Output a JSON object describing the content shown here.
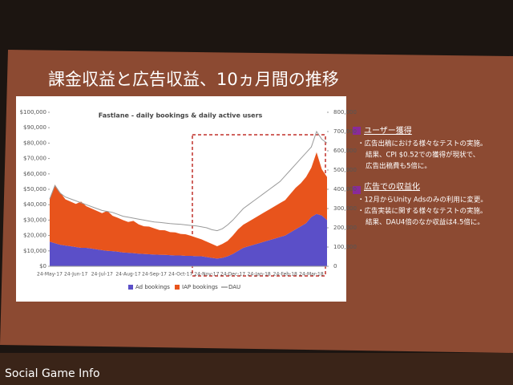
{
  "slide": {
    "title": "課金収益と広告収益、10ヵ月間の推移",
    "sections": [
      {
        "heading": "ユーザー獲得",
        "lines": [
          "・広告出稿における様々なテストの実施。",
          "結果、CPI $0.52での獲得が現状で、",
          "広告出稿費も5倍に。"
        ]
      },
      {
        "heading": "広告での収益化",
        "lines": [
          "・12月からUnity Adsのみの利用に変更。",
          "・広告実装に関する様々なテストの実施。",
          "結果、DAU4倍のなか収益は4.5倍に。"
        ]
      }
    ]
  },
  "watermark": "Social Game Info",
  "chart_data": {
    "type": "stacked-area-line",
    "title": "Fastlane - daily bookings & daily active users",
    "categories": [
      "24-May-17",
      null,
      null,
      null,
      null,
      "24-Jun-17",
      null,
      null,
      null,
      null,
      "24-Jul-17",
      null,
      null,
      null,
      null,
      "24-Aug-17",
      null,
      null,
      null,
      null,
      "24-Sep-17",
      null,
      null,
      null,
      null,
      "24-Oct-17",
      null,
      null,
      null,
      null,
      "24-Nov-17",
      null,
      null,
      null,
      null,
      "24-Dec-17",
      null,
      null,
      null,
      null,
      "24-Jan-18",
      null,
      null,
      null,
      null,
      "24-Feb-18",
      null,
      null,
      null,
      null,
      "24-Mar-18",
      null,
      null,
      null
    ],
    "series": [
      {
        "name": "Ad bookings",
        "color": "#5b4fc8",
        "values": [
          16000,
          15000,
          14000,
          13500,
          13000,
          12500,
          12000,
          12000,
          11500,
          11000,
          10500,
          10000,
          9800,
          9500,
          9000,
          8800,
          8500,
          8200,
          8000,
          7800,
          7600,
          7500,
          7400,
          7200,
          7000,
          7000,
          6800,
          6800,
          6600,
          6500,
          6000,
          5500,
          5000,
          5500,
          6500,
          8000,
          10000,
          12000,
          13000,
          14000,
          15000,
          16000,
          17000,
          18000,
          19000,
          20000,
          22000,
          24000,
          26000,
          28000,
          32000,
          34000,
          33000,
          30000
        ]
      },
      {
        "name": "IAP bookings",
        "color": "#e8541c",
        "values": [
          28000,
          38000,
          34000,
          30000,
          29000,
          28000,
          30000,
          27000,
          26000,
          25000,
          24000,
          26000,
          23000,
          22000,
          21000,
          20000,
          21000,
          19000,
          18000,
          18000,
          17000,
          16000,
          16000,
          15000,
          15000,
          14000,
          14000,
          13000,
          12000,
          11000,
          10000,
          9000,
          8000,
          9000,
          10000,
          12000,
          14000,
          15000,
          16000,
          17000,
          18000,
          19000,
          20000,
          21000,
          22000,
          23000,
          25000,
          27000,
          28000,
          30000,
          32000,
          40000,
          30000,
          28000
        ]
      },
      {
        "name": "DAU",
        "color": "#9a9a9a",
        "axis": "y2",
        "values": [
          350000,
          420000,
          380000,
          360000,
          350000,
          340000,
          330000,
          320000,
          310000,
          300000,
          290000,
          285000,
          280000,
          270000,
          260000,
          255000,
          250000,
          245000,
          240000,
          235000,
          230000,
          228000,
          225000,
          222000,
          220000,
          218000,
          215000,
          212000,
          210000,
          205000,
          200000,
          190000,
          185000,
          195000,
          215000,
          240000,
          270000,
          300000,
          320000,
          340000,
          360000,
          380000,
          400000,
          420000,
          440000,
          470000,
          500000,
          530000,
          560000,
          590000,
          620000,
          700000,
          660000,
          640000
        ]
      }
    ],
    "ylim": [
      0,
      100000
    ],
    "yticks": [
      {
        "value": 0,
        "label": "$0"
      },
      {
        "value": 10000,
        "label": "$10,000"
      },
      {
        "value": 20000,
        "label": "$20,000"
      },
      {
        "value": 30000,
        "label": "$30,000"
      },
      {
        "value": 40000,
        "label": "$40,000"
      },
      {
        "value": 50000,
        "label": "$50,000"
      },
      {
        "value": 60000,
        "label": "$60,000"
      },
      {
        "value": 70000,
        "label": "$70,000"
      },
      {
        "value": 80000,
        "label": "$80,000"
      },
      {
        "value": 90000,
        "label": "$90,000"
      },
      {
        "value": 100000,
        "label": "$100,000"
      }
    ],
    "y2lim": [
      0,
      800000
    ],
    "y2ticks": [
      0,
      {
        "value": 100000,
        "label": "100,000"
      },
      {
        "value": 200000,
        "label": "200,000"
      },
      {
        "value": 300000,
        "label": "300,000"
      },
      {
        "value": 400000,
        "label": "400,000"
      },
      {
        "value": 500000,
        "label": "500,000"
      },
      {
        "value": 600000,
        "label": "600,000"
      },
      {
        "value": 700000,
        "label": "700,000"
      },
      {
        "value": 800000,
        "label": "800,000"
      }
    ],
    "legend": "bottom"
  }
}
